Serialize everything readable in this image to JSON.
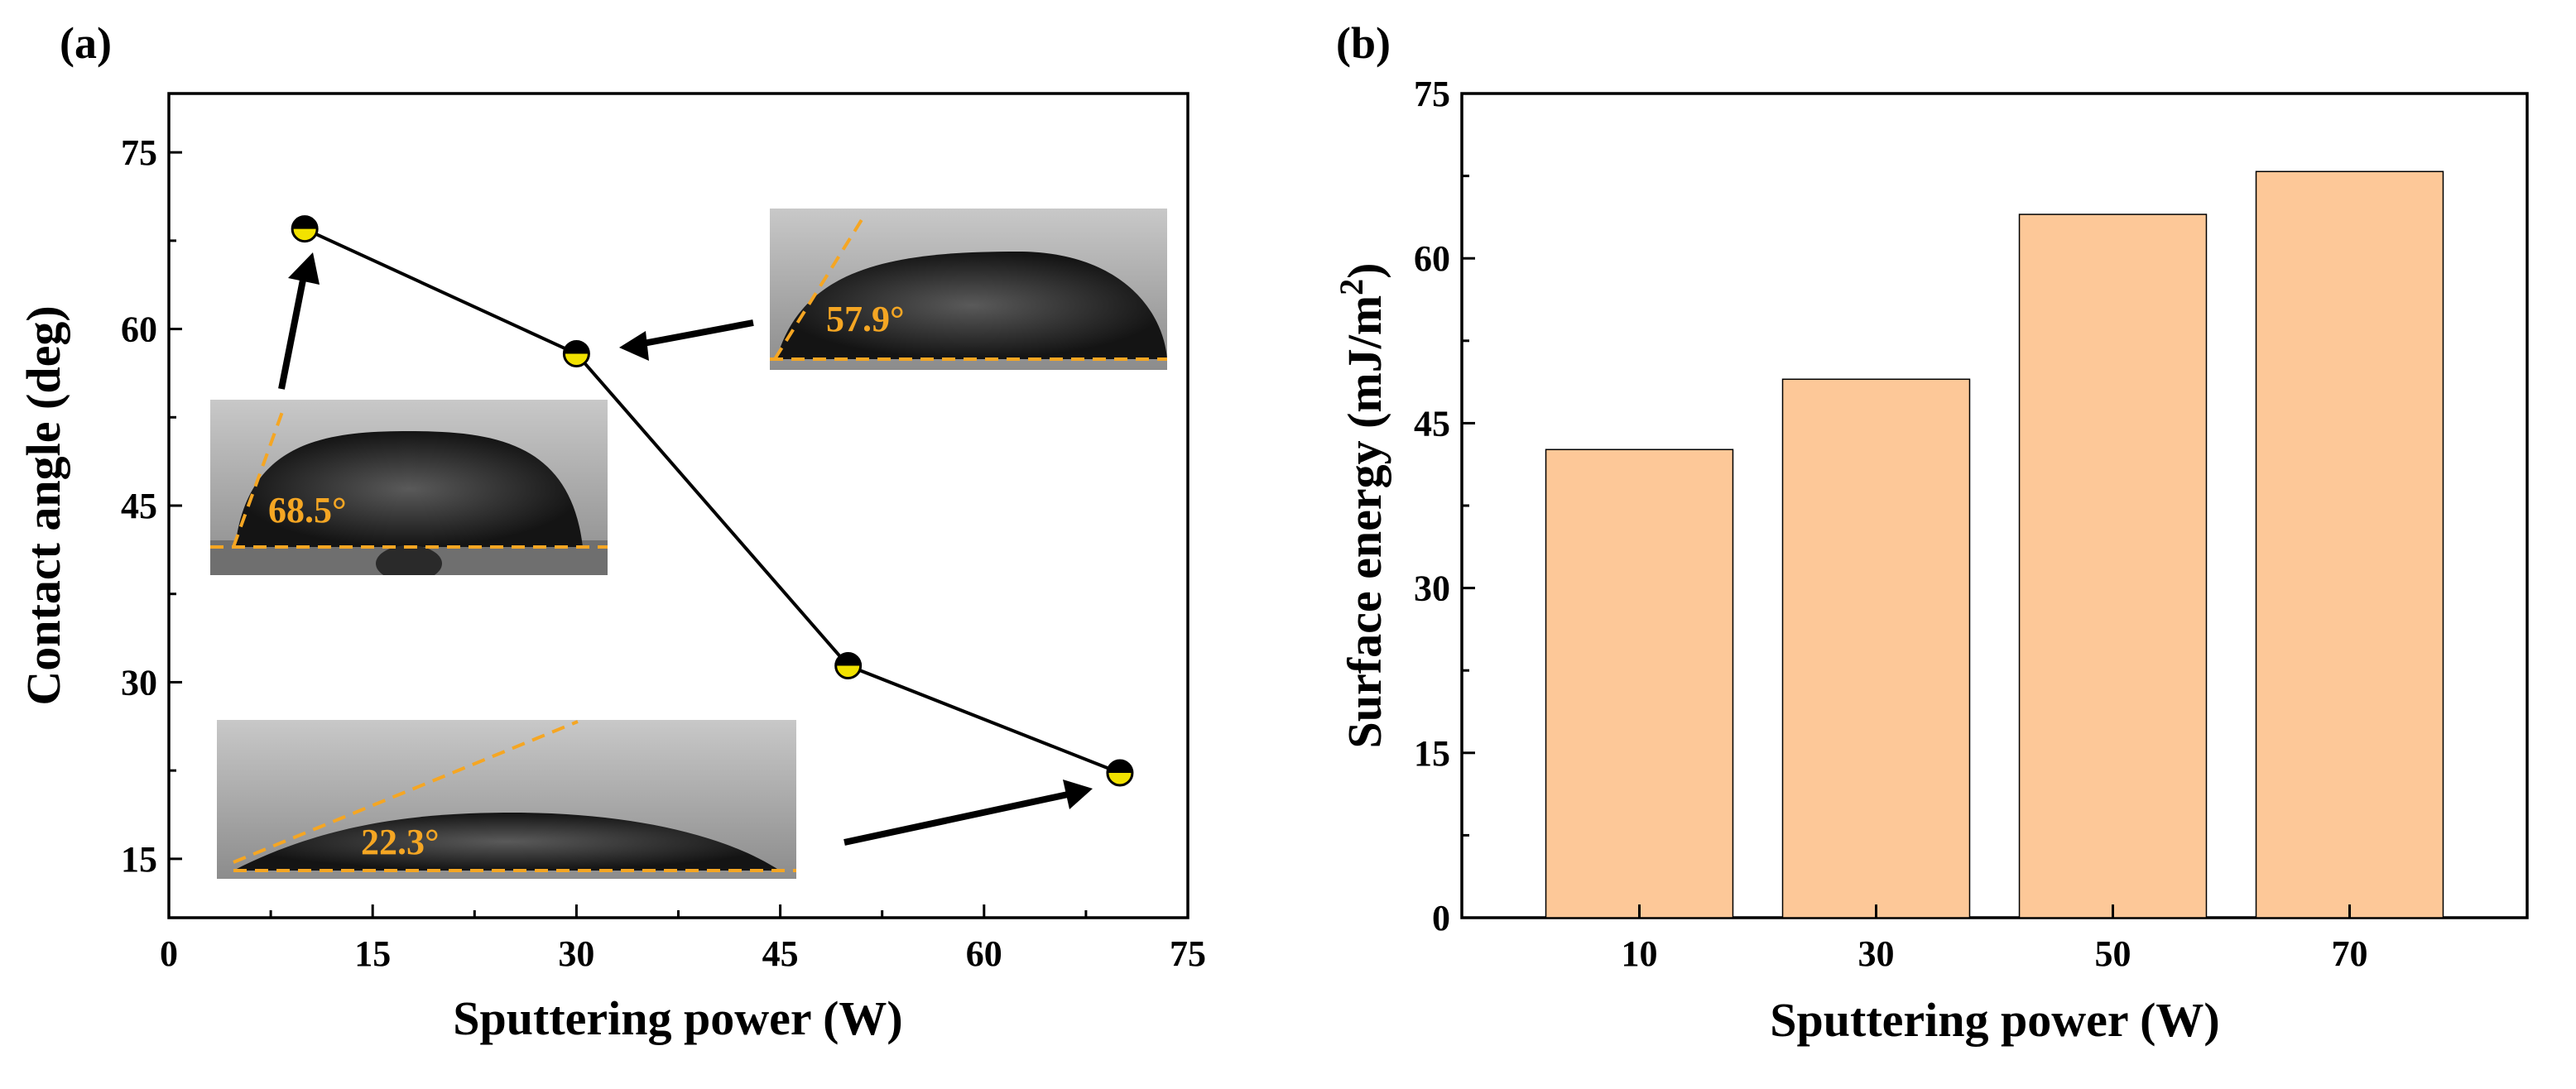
{
  "chart_data": [
    {
      "panel": "(a)",
      "type": "line",
      "xlabel": "Sputtering power (W)",
      "ylabel": "Contact angle (deg)",
      "xlim": [
        0,
        75
      ],
      "ylim": [
        10,
        80
      ],
      "xticks": [
        0,
        15,
        30,
        45,
        60,
        75
      ],
      "yticks": [
        15,
        30,
        45,
        60,
        75
      ],
      "series": [
        {
          "name": "Contact angle",
          "x": [
            10,
            30,
            50,
            70
          ],
          "y": [
            68.5,
            57.9,
            31.4,
            22.3
          ],
          "marker_color": "#f2e200",
          "line_color": "#000000"
        }
      ],
      "insets": [
        {
          "name": "droplet-10w",
          "label": "68.5°",
          "points_to_x": 10
        },
        {
          "name": "droplet-30w",
          "label": "57.9°",
          "points_to_x": 30
        },
        {
          "name": "droplet-70w",
          "label": "22.3°",
          "points_to_x": 70
        }
      ]
    },
    {
      "panel": "(b)",
      "type": "bar",
      "xlabel": "Sputtering power (W)",
      "ylabel": "Surface energy (mJ/m",
      "ylabel_sup": "2",
      "ylabel_end": ")",
      "categories": [
        "10",
        "30",
        "50",
        "70"
      ],
      "values": [
        42.6,
        49.0,
        64.0,
        67.9
      ],
      "ylim": [
        0,
        75
      ],
      "yticks": [
        0,
        15,
        30,
        45,
        60,
        75
      ],
      "bar_color": "#fdc898"
    }
  ]
}
